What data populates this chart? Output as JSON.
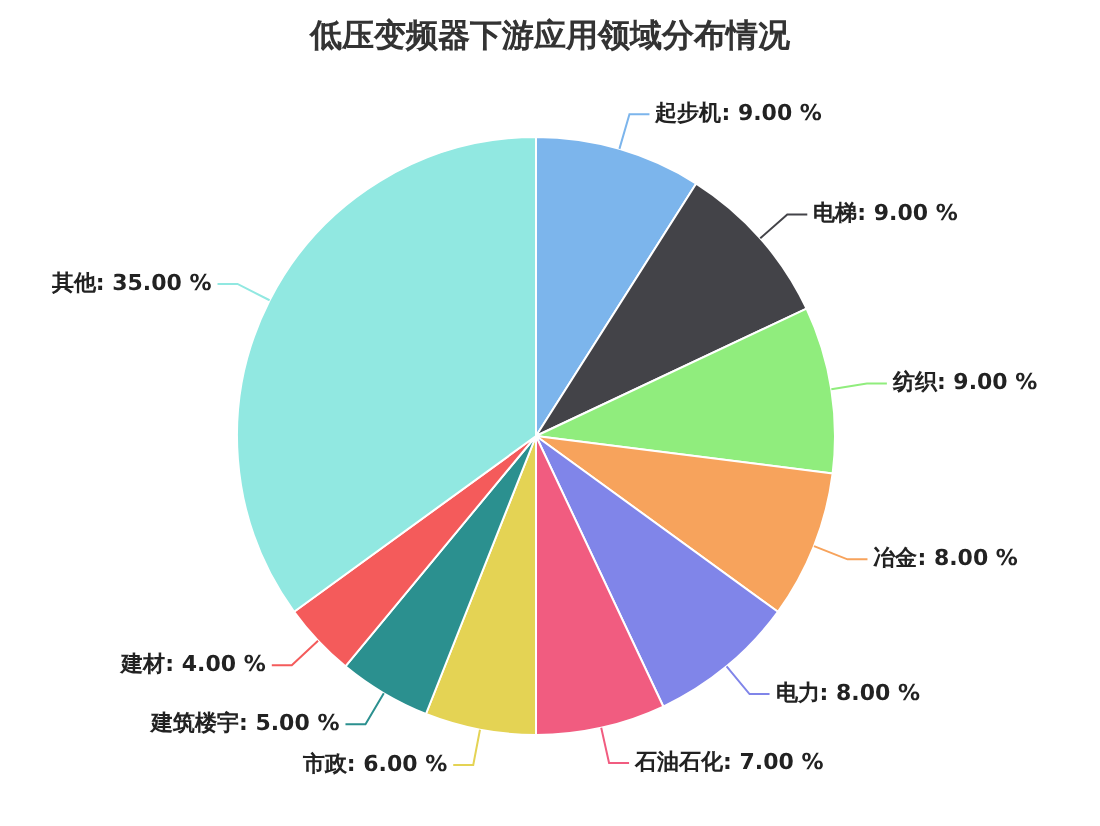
{
  "chart_data": {
    "type": "pie",
    "title": "低压变频器下游应用领域分布情况",
    "categories": [
      "起步机",
      "电梯",
      "纺织",
      "冶金",
      "电力",
      "石油石化",
      "市政",
      "建筑楼宇",
      "建材",
      "其他"
    ],
    "values": [
      9,
      9,
      9,
      8,
      8,
      7,
      6,
      5,
      4,
      35
    ],
    "value_labels": [
      "9.00 %",
      "9.00 %",
      "9.00 %",
      "8.00 %",
      "8.00 %",
      "7.00 %",
      "6.00 %",
      "5.00 %",
      "4.00 %",
      "35.00 %"
    ],
    "colors": [
      "#7cb5ec",
      "#434348",
      "#90ed7d",
      "#f7a35c",
      "#8085e9",
      "#f15c80",
      "#e4d354",
      "#2b908f",
      "#f45b5b",
      "#91e8e1"
    ],
    "legend": false
  }
}
